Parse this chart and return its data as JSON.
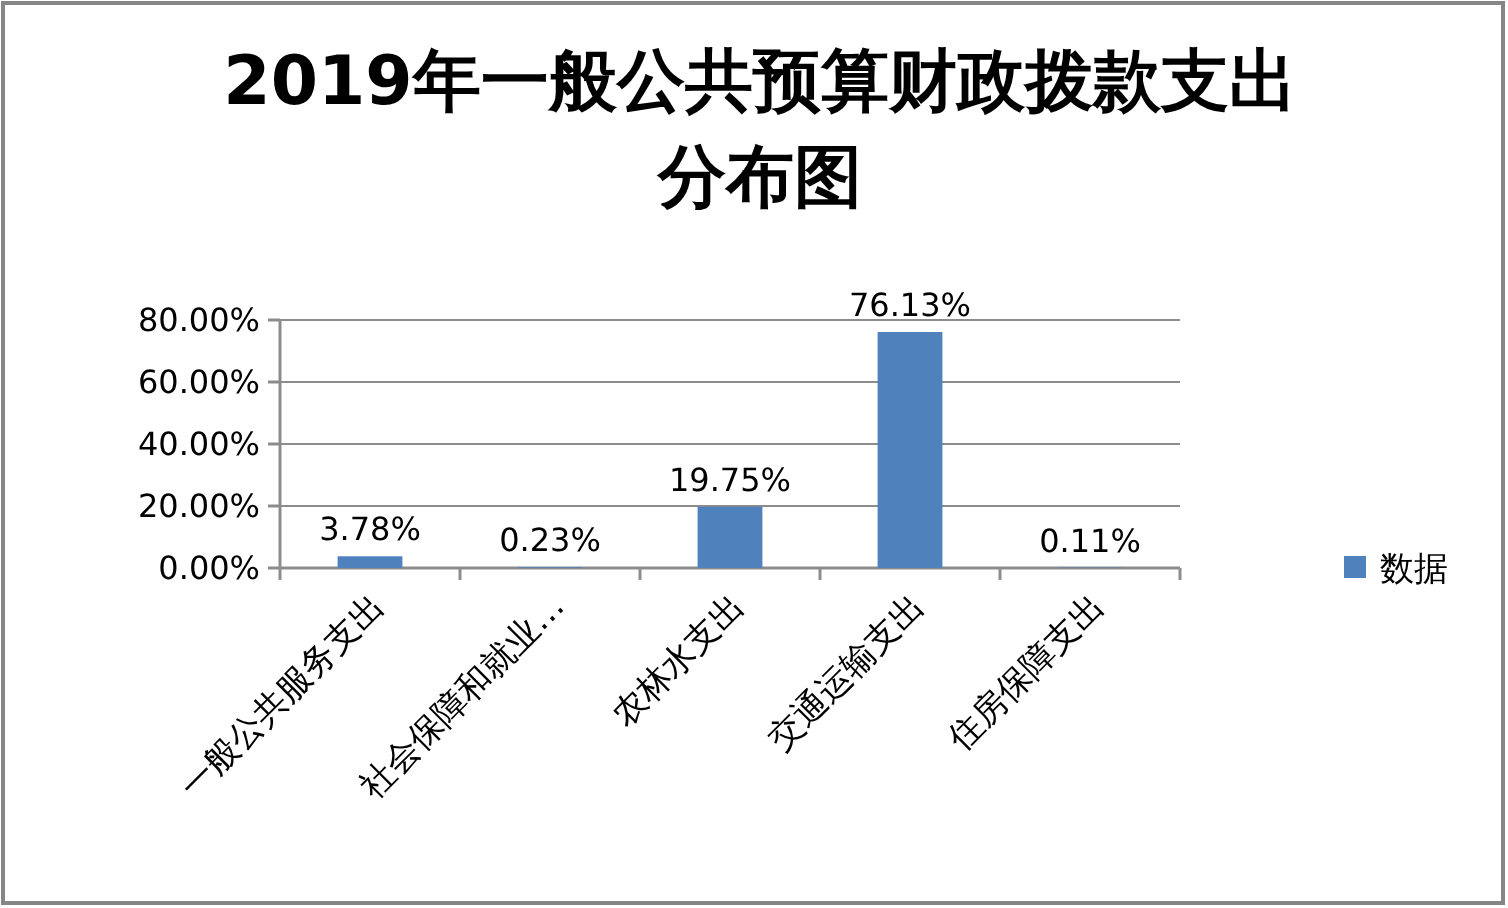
{
  "chart_data": {
    "type": "bar",
    "title": "2019年一般公共预算财政拨款支出分布图",
    "categories": [
      "一般公共服务支出",
      "社会保障和就业…",
      "农林水支出",
      "交通运输支出",
      "住房保障支出"
    ],
    "series": [
      {
        "name": "数据",
        "color": "#4f81bd",
        "values": [
          3.78,
          0.23,
          19.75,
          76.13,
          0.11
        ],
        "value_labels": [
          "3.78%",
          "0.23%",
          "19.75%",
          "76.13%",
          "0.11%"
        ]
      }
    ],
    "ylim": [
      0,
      80
    ],
    "yticks": [
      {
        "value": 0,
        "label": "0.00%"
      },
      {
        "value": 20,
        "label": "20.00%"
      },
      {
        "value": 40,
        "label": "40.00%"
      },
      {
        "value": 60,
        "label": "60.00%"
      },
      {
        "value": 80,
        "label": "80.00%"
      }
    ],
    "grid": "y",
    "legend": "right"
  }
}
